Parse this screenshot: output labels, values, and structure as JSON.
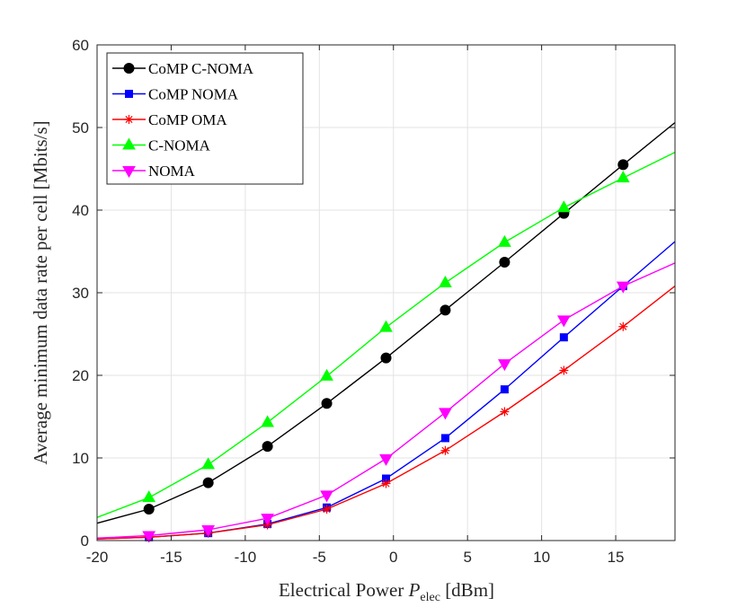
{
  "chart_data": {
    "type": "line",
    "xlabel_main": "Electrical Power ",
    "xlabel_symbol": "P",
    "xlabel_subscript": "elec",
    "xlabel_unit": " [dBm]",
    "ylabel": "Average minimum data rate per cell [Mbits/s]",
    "xlim": [
      -20,
      19
    ],
    "ylim": [
      0,
      60
    ],
    "xticks": [
      -20,
      -15,
      -10,
      -5,
      0,
      5,
      10,
      15
    ],
    "yticks": [
      0,
      10,
      20,
      30,
      40,
      50,
      60
    ],
    "grid": true,
    "legend_position": "top-left",
    "series": [
      {
        "name": "CoMP C-NOMA",
        "color": "#000000",
        "marker": "circle",
        "x": [
          -20,
          -16.5,
          -12.5,
          -8.5,
          -4.5,
          -0.5,
          3.5,
          7.5,
          11.5,
          15.5,
          19
        ],
        "y": [
          2.1,
          3.8,
          7.0,
          11.4,
          16.6,
          22.1,
          27.9,
          33.7,
          39.6,
          45.5,
          50.6
        ],
        "marker_x": [
          -16.5,
          -12.5,
          -8.5,
          -4.5,
          -0.5,
          3.5,
          7.5,
          11.5,
          15.5
        ],
        "marker_y": [
          3.8,
          7.0,
          11.4,
          16.6,
          22.1,
          27.9,
          33.7,
          39.6,
          45.5
        ]
      },
      {
        "name": "CoMP NOMA",
        "color": "#0000ff",
        "marker": "square",
        "x": [
          -20,
          -16.5,
          -12.5,
          -8.5,
          -4.5,
          -0.5,
          3.5,
          7.5,
          11.5,
          15.5,
          19
        ],
        "y": [
          0.2,
          0.4,
          0.9,
          2.0,
          4.0,
          7.5,
          12.4,
          18.3,
          24.6,
          30.8,
          36.2
        ],
        "marker_x": [
          -16.5,
          -12.5,
          -8.5,
          -4.5,
          -0.5,
          3.5,
          7.5,
          11.5,
          15.5
        ],
        "marker_y": [
          0.4,
          0.9,
          2.0,
          4.0,
          7.5,
          12.4,
          18.3,
          24.6,
          30.8
        ]
      },
      {
        "name": "CoMP OMA",
        "color": "#ff0000",
        "marker": "asterisk",
        "x": [
          -20,
          -16.5,
          -12.5,
          -8.5,
          -4.5,
          -0.5,
          3.5,
          7.5,
          11.5,
          15.5,
          19
        ],
        "y": [
          0.2,
          0.4,
          0.9,
          1.9,
          3.8,
          6.9,
          10.9,
          15.6,
          20.6,
          25.9,
          30.8
        ],
        "marker_x": [
          -16.5,
          -12.5,
          -8.5,
          -4.5,
          -0.5,
          3.5,
          7.5,
          11.5,
          15.5
        ],
        "marker_y": [
          0.4,
          0.9,
          1.9,
          3.8,
          6.9,
          10.9,
          15.6,
          20.6,
          25.9
        ]
      },
      {
        "name": "C-NOMA",
        "color": "#00ff00",
        "marker": "triangle-up",
        "x": [
          -20,
          -16.5,
          -12.5,
          -8.5,
          -4.5,
          -0.5,
          3.5,
          7.5,
          11.5,
          15.5,
          19
        ],
        "y": [
          2.8,
          5.2,
          9.2,
          14.3,
          19.9,
          25.8,
          31.2,
          36.1,
          40.3,
          43.9,
          47.0
        ],
        "marker_x": [
          -16.5,
          -12.5,
          -8.5,
          -4.5,
          -0.5,
          3.5,
          7.5,
          11.5,
          15.5
        ],
        "marker_y": [
          5.2,
          9.2,
          14.3,
          19.9,
          25.8,
          31.2,
          36.1,
          40.3,
          43.9
        ]
      },
      {
        "name": "NOMA",
        "color": "#ff00ff",
        "marker": "triangle-down",
        "x": [
          -20,
          -16.5,
          -12.5,
          -8.5,
          -4.5,
          -0.5,
          3.5,
          7.5,
          11.5,
          15.5,
          19
        ],
        "y": [
          0.3,
          0.6,
          1.3,
          2.7,
          5.5,
          9.9,
          15.5,
          21.4,
          26.7,
          30.8,
          33.6
        ],
        "marker_x": [
          -16.5,
          -12.5,
          -8.5,
          -4.5,
          -0.5,
          3.5,
          7.5,
          11.5,
          15.5
        ],
        "marker_y": [
          0.6,
          1.3,
          2.7,
          5.5,
          9.9,
          15.5,
          21.4,
          26.7,
          30.8
        ]
      }
    ]
  }
}
